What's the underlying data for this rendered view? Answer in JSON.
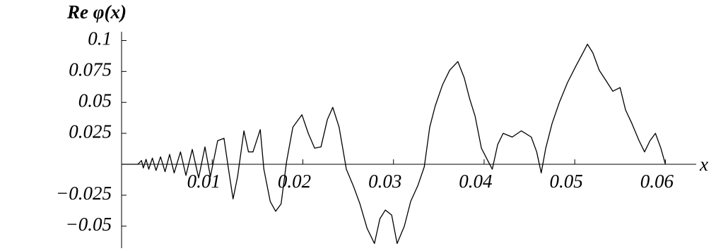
{
  "chart_data": {
    "type": "line",
    "ylabel": "Re φ(x)",
    "xlabel": "x",
    "xlim": [
      0,
      0.0634
    ],
    "ylim": [
      -0.0678,
      0.1071
    ],
    "xticks": [
      0.01,
      0.02,
      0.03,
      0.04,
      0.05,
      0.06
    ],
    "yticks": [
      0.1,
      0.075,
      0.05,
      0.025,
      {
        "value": -0.025,
        "label": "−0.025"
      },
      {
        "value": -0.05,
        "label": "−0.05"
      }
    ],
    "color": "#000000",
    "x": [
      0,
      0.0018,
      0.0022,
      0.0024,
      0.0027,
      0.003,
      0.0034,
      0.0038,
      0.0043,
      0.0048,
      0.0053,
      0.0058,
      0.0065,
      0.0071,
      0.0078,
      0.0085,
      0.0092,
      0.0098,
      0.0106,
      0.0113,
      0.0118,
      0.0123,
      0.0128,
      0.0135,
      0.014,
      0.0145,
      0.0153,
      0.0157,
      0.0164,
      0.017,
      0.0176,
      0.0182,
      0.0189,
      0.0199,
      0.0206,
      0.0213,
      0.022,
      0.0227,
      0.0233,
      0.024,
      0.0248,
      0.0256,
      0.0263,
      0.0271,
      0.0279,
      0.0285,
      0.0291,
      0.0298,
      0.0304,
      0.0312,
      0.0319,
      0.0327,
      0.0334,
      0.034,
      0.0346,
      0.0354,
      0.0362,
      0.0371,
      0.0378,
      0.0384,
      0.039,
      0.0397,
      0.0404,
      0.0409,
      0.0415,
      0.0421,
      0.0431,
      0.0441,
      0.0452,
      0.0458,
      0.0463,
      0.0468,
      0.0475,
      0.0483,
      0.0492,
      0.0501,
      0.0509,
      0.0514,
      0.052,
      0.0527,
      0.0535,
      0.0542,
      0.055,
      0.0556,
      0.0563,
      0.0571,
      0.0577,
      0.0583,
      0.0589,
      0.0595,
      0.06
    ],
    "values": [
      0,
      0,
      0.003,
      -0.003,
      0.004,
      -0.004,
      0.005,
      -0.005,
      0.006,
      -0.006,
      0.008,
      -0.007,
      0.01,
      -0.009,
      0.012,
      -0.011,
      0.014,
      -0.01,
      0.019,
      0.021,
      -0.004,
      -0.028,
      -0.01,
      0.027,
      0.01,
      0.01,
      0.028,
      -0.004,
      -0.03,
      -0.038,
      -0.032,
      0.002,
      0.03,
      0.04,
      0.025,
      0.013,
      0.014,
      0.036,
      0.046,
      0.03,
      -0.004,
      -0.018,
      -0.032,
      -0.052,
      -0.064,
      -0.044,
      -0.037,
      -0.041,
      -0.064,
      -0.05,
      -0.03,
      -0.017,
      -0.002,
      0.03,
      0.047,
      0.064,
      0.076,
      0.083,
      0.07,
      0.053,
      0.039,
      0.013,
      0.003,
      -0.004,
      0.016,
      0.025,
      0.022,
      0.027,
      0.022,
      0.01,
      -0.007,
      0.013,
      0.033,
      0.05,
      0.066,
      0.079,
      0.09,
      0.097,
      0.09,
      0.076,
      0.067,
      0.059,
      0.062,
      0.044,
      0.033,
      0.019,
      0.01,
      0.019,
      0.025,
      0.013,
      0
    ]
  }
}
